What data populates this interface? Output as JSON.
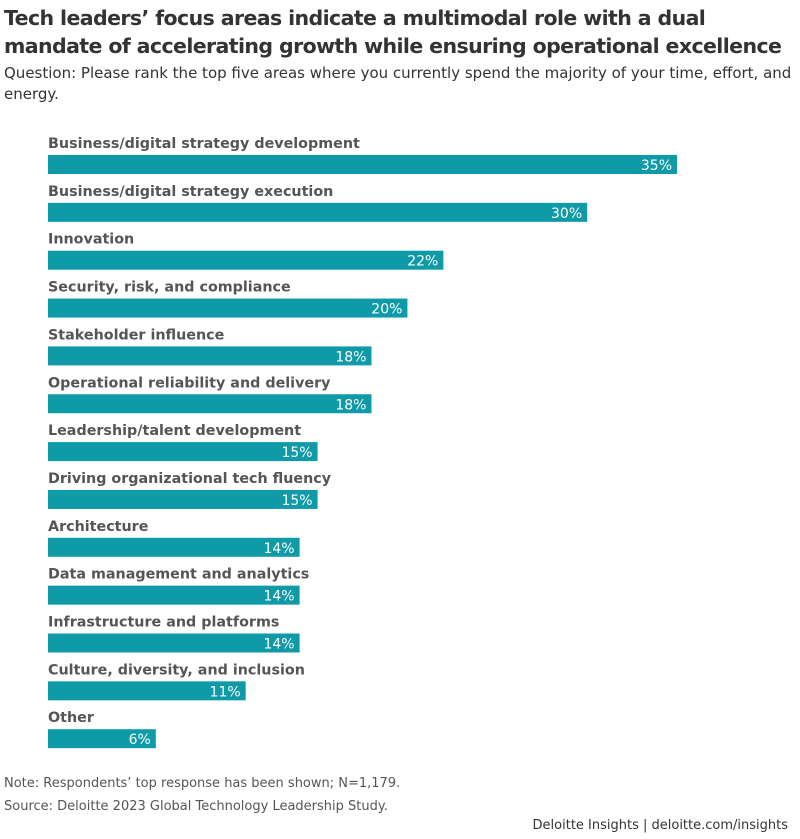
{
  "header": {
    "title": "Tech leaders’ focus areas indicate a multimodal role with a dual mandate of accelerating growth while ensuring operational excellence",
    "subtitle": "Question: Please rank the top five areas where you currently spend the majority of your time, effort, and energy."
  },
  "footer": {
    "note": "Note: Respondents’ top response has been shown; N=1,179.",
    "source": "Source: Deloitte 2023 Global Technology Leadership Study.",
    "brand": "Deloitte Insights | deloitte.com/insights"
  },
  "colors": {
    "bar": "#0f9aa8",
    "value_text": "#ffffff",
    "category_text": "#555555"
  },
  "chart_data": {
    "type": "bar",
    "orientation": "horizontal",
    "categories": [
      "Business/digital strategy development",
      "Business/digital strategy execution",
      "Innovation",
      "Security, risk, and compliance",
      "Stakeholder influence",
      "Operational reliability and delivery",
      "Leadership/talent development",
      "Driving organizational tech fluency",
      "Architecture",
      "Data management and analytics",
      "Infrastructure and platforms",
      "Culture, diversity, and inclusion",
      "Other"
    ],
    "values": [
      35,
      30,
      22,
      20,
      18,
      18,
      15,
      15,
      14,
      14,
      14,
      11,
      6
    ],
    "value_labels": [
      "35%",
      "30%",
      "22%",
      "20%",
      "18%",
      "18%",
      "15%",
      "15%",
      "14%",
      "14%",
      "14%",
      "11%",
      "6%"
    ],
    "unit": "%",
    "xlim": [
      0,
      35
    ],
    "grid": false,
    "legend": "none"
  }
}
